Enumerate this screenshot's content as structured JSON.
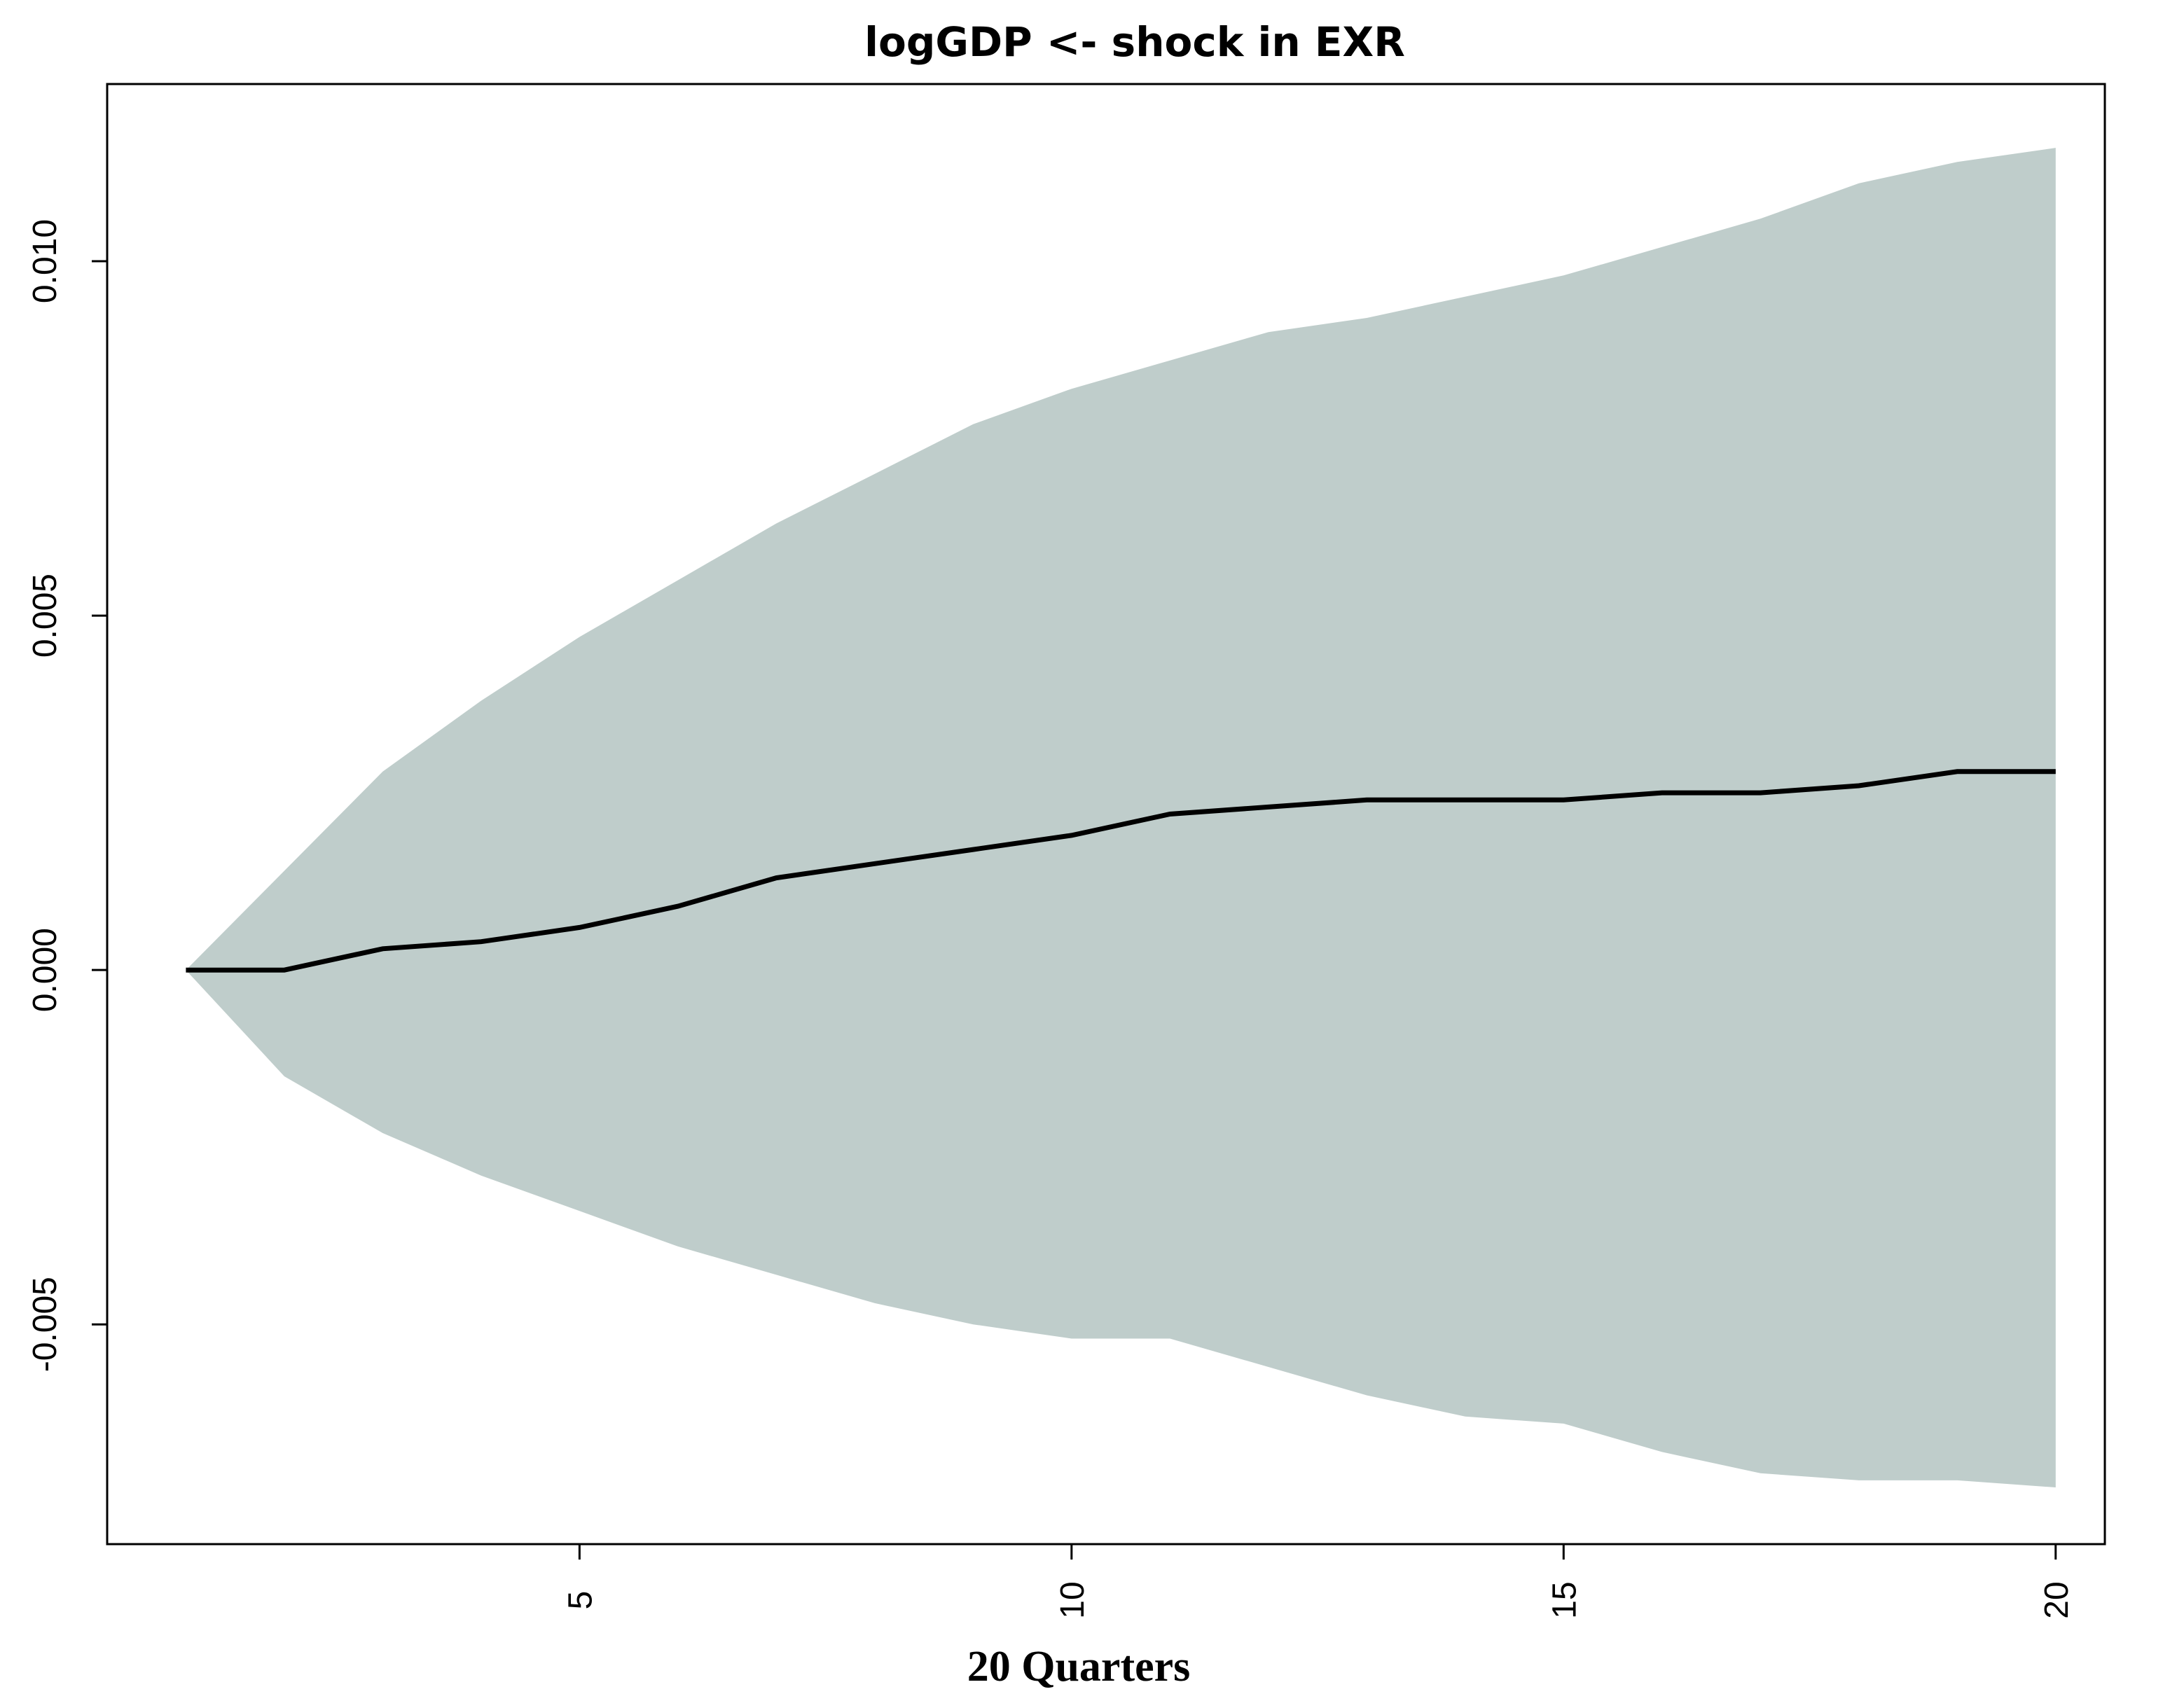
{
  "chart_data": {
    "type": "area",
    "title": "logGDP <- shock in EXR",
    "xlabel": "20 Quarters",
    "ylabel": "",
    "xlim": [
      0.2,
      20.5
    ],
    "ylim": [
      -0.0081,
      0.0125
    ],
    "x_ticks": [
      5,
      10,
      15,
      20
    ],
    "x_tick_labels": [
      "5",
      "10",
      "15",
      "20"
    ],
    "y_ticks": [
      -0.005,
      0.0,
      0.005,
      0.01
    ],
    "y_tick_labels": [
      "-0.005",
      "0.000",
      "0.005",
      "0.010"
    ],
    "grid": false,
    "legend": "none",
    "x": [
      1,
      2,
      3,
      4,
      5,
      6,
      7,
      8,
      9,
      10,
      11,
      12,
      13,
      14,
      15,
      16,
      17,
      18,
      19,
      20
    ],
    "series": [
      {
        "role": "response",
        "values": [
          0.0,
          0.0,
          0.0003,
          0.0004,
          0.0006,
          0.0009,
          0.0013,
          0.0015,
          0.0017,
          0.0019,
          0.0022,
          0.0023,
          0.0024,
          0.0024,
          0.0024,
          0.0025,
          0.0025,
          0.0026,
          0.0028,
          0.0028
        ]
      },
      {
        "role": "upper_band",
        "values": [
          0.0,
          0.0014,
          0.0028,
          0.0038,
          0.0047,
          0.0055,
          0.0063,
          0.007,
          0.0077,
          0.0082,
          0.0086,
          0.009,
          0.0092,
          0.0095,
          0.0098,
          0.0102,
          0.0106,
          0.0111,
          0.0114,
          0.0116
        ]
      },
      {
        "role": "lower_band",
        "values": [
          0.0,
          -0.0015,
          -0.0023,
          -0.0029,
          -0.0034,
          -0.0039,
          -0.0043,
          -0.0047,
          -0.005,
          -0.0052,
          -0.0052,
          -0.0056,
          -0.006,
          -0.0063,
          -0.0064,
          -0.0068,
          -0.0071,
          -0.0072,
          -0.0072,
          -0.0073
        ]
      }
    ],
    "colors": {
      "band": "#bfcdcb",
      "line": "#000000",
      "axes": "#000000"
    }
  }
}
